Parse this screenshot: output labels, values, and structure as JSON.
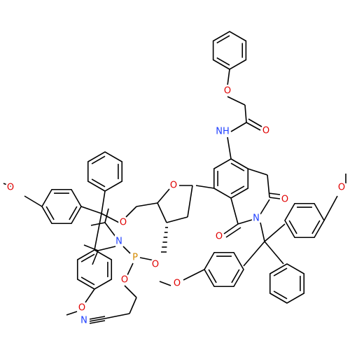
{
  "atoms": [
    {
      "label": "O"
    },
    {
      "label": "O"
    },
    {
      "label": "NH"
    },
    {
      "label": "O"
    },
    {
      "label": "O"
    },
    {
      "label": "N"
    },
    {
      "label": "O"
    },
    {
      "label": "O"
    },
    {
      "label": "O"
    },
    {
      "label": "N"
    },
    {
      "label": "P"
    },
    {
      "label": "O"
    },
    {
      "label": "N"
    },
    {
      "label": "O"
    },
    {
      "label": "O"
    },
    {
      "label": "O"
    },
    {
      "label": "O"
    }
  ]
}
